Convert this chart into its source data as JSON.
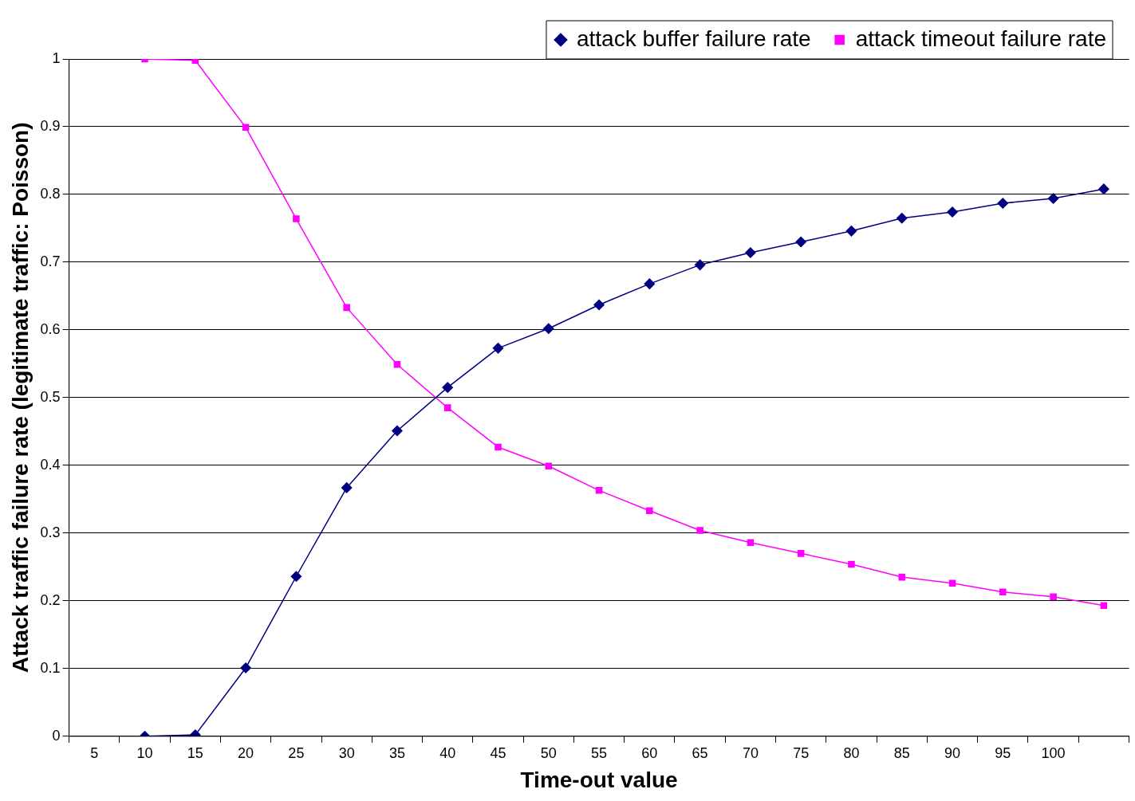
{
  "chart_data": {
    "type": "line",
    "xlabel": "Time-out value",
    "ylabel": "Attack traffic failure rate (legitimate traffic: Poisson)",
    "categories": [
      "5",
      "10",
      "15",
      "20",
      "25",
      "30",
      "35",
      "40",
      "45",
      "50",
      "55",
      "60",
      "65",
      "70",
      "75",
      "80",
      "85",
      "90",
      "95",
      "100",
      null
    ],
    "series": [
      {
        "name": "attack buffer failure rate",
        "color": "#000080",
        "marker": "diamond",
        "values": [
          null,
          0,
          0.002,
          0.101,
          0.236,
          0.367,
          0.451,
          0.515,
          0.573,
          0.602,
          0.637,
          0.668,
          0.696,
          0.714,
          0.73,
          0.746,
          0.765,
          0.774,
          0.787,
          0.794,
          0.808
        ]
      },
      {
        "name": "attack timeout failure rate",
        "color": "#ff00ff",
        "marker": "square",
        "values": [
          null,
          1,
          0.998,
          0.899,
          0.764,
          0.633,
          0.549,
          0.485,
          0.427,
          0.399,
          0.363,
          0.333,
          0.304,
          0.286,
          0.27,
          0.254,
          0.235,
          0.226,
          0.213,
          0.206,
          0.193
        ]
      }
    ],
    "ylim": [
      0,
      1
    ],
    "yticks": [
      0,
      0.1,
      0.2,
      0.3,
      0.4,
      0.5,
      0.6,
      0.7,
      0.8,
      0.9,
      1
    ],
    "grid": "y",
    "legend": "top right",
    "line_style": "solid"
  }
}
